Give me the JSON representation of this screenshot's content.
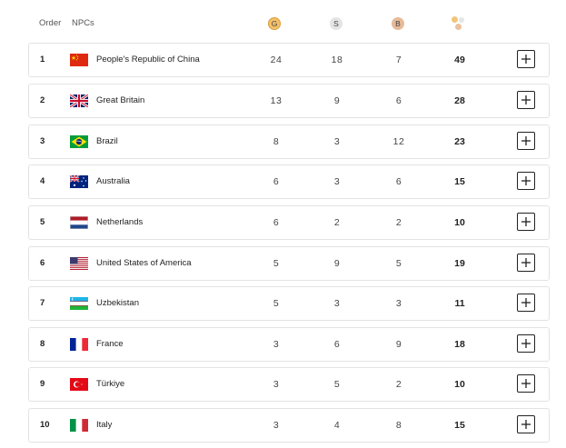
{
  "header": {
    "order_label": "Order",
    "npcs_label": "NPCs",
    "gold_label": "G",
    "silver_label": "S",
    "bronze_label": "B",
    "gold_color": "#f4c06a",
    "silver_color": "#e2e2e2",
    "bronze_color": "#e2b898",
    "total_icon": "medals-total-icon"
  },
  "rows": [
    {
      "order": "1",
      "country": "People's Republic of China",
      "flag": "china-flag",
      "gold": "24",
      "silver": "18",
      "bronze": "7",
      "total": "49",
      "expand_icon": "plus-icon"
    },
    {
      "order": "2",
      "country": "Great Britain",
      "flag": "great-britain-flag",
      "gold": "13",
      "silver": "9",
      "bronze": "6",
      "total": "28",
      "expand_icon": "plus-icon"
    },
    {
      "order": "3",
      "country": "Brazil",
      "flag": "brazil-flag",
      "gold": "8",
      "silver": "3",
      "bronze": "12",
      "total": "23",
      "expand_icon": "plus-icon"
    },
    {
      "order": "4",
      "country": "Australia",
      "flag": "australia-flag",
      "gold": "6",
      "silver": "3",
      "bronze": "6",
      "total": "15",
      "expand_icon": "plus-icon"
    },
    {
      "order": "5",
      "country": "Netherlands",
      "flag": "netherlands-flag",
      "gold": "6",
      "silver": "2",
      "bronze": "2",
      "total": "10",
      "expand_icon": "plus-icon"
    },
    {
      "order": "6",
      "country": "United States of America",
      "flag": "usa-flag",
      "gold": "5",
      "silver": "9",
      "bronze": "5",
      "total": "19",
      "expand_icon": "plus-icon"
    },
    {
      "order": "7",
      "country": "Uzbekistan",
      "flag": "uzbekistan-flag",
      "gold": "5",
      "silver": "3",
      "bronze": "3",
      "total": "11",
      "expand_icon": "plus-icon"
    },
    {
      "order": "8",
      "country": "France",
      "flag": "france-flag",
      "gold": "3",
      "silver": "6",
      "bronze": "9",
      "total": "18",
      "expand_icon": "plus-icon"
    },
    {
      "order": "9",
      "country": "Türkiye",
      "flag": "turkiye-flag",
      "gold": "3",
      "silver": "5",
      "bronze": "2",
      "total": "10",
      "expand_icon": "plus-icon"
    },
    {
      "order": "10",
      "country": "Italy",
      "flag": "italy-flag",
      "gold": "3",
      "silver": "4",
      "bronze": "8",
      "total": "15",
      "expand_icon": "plus-icon"
    }
  ]
}
